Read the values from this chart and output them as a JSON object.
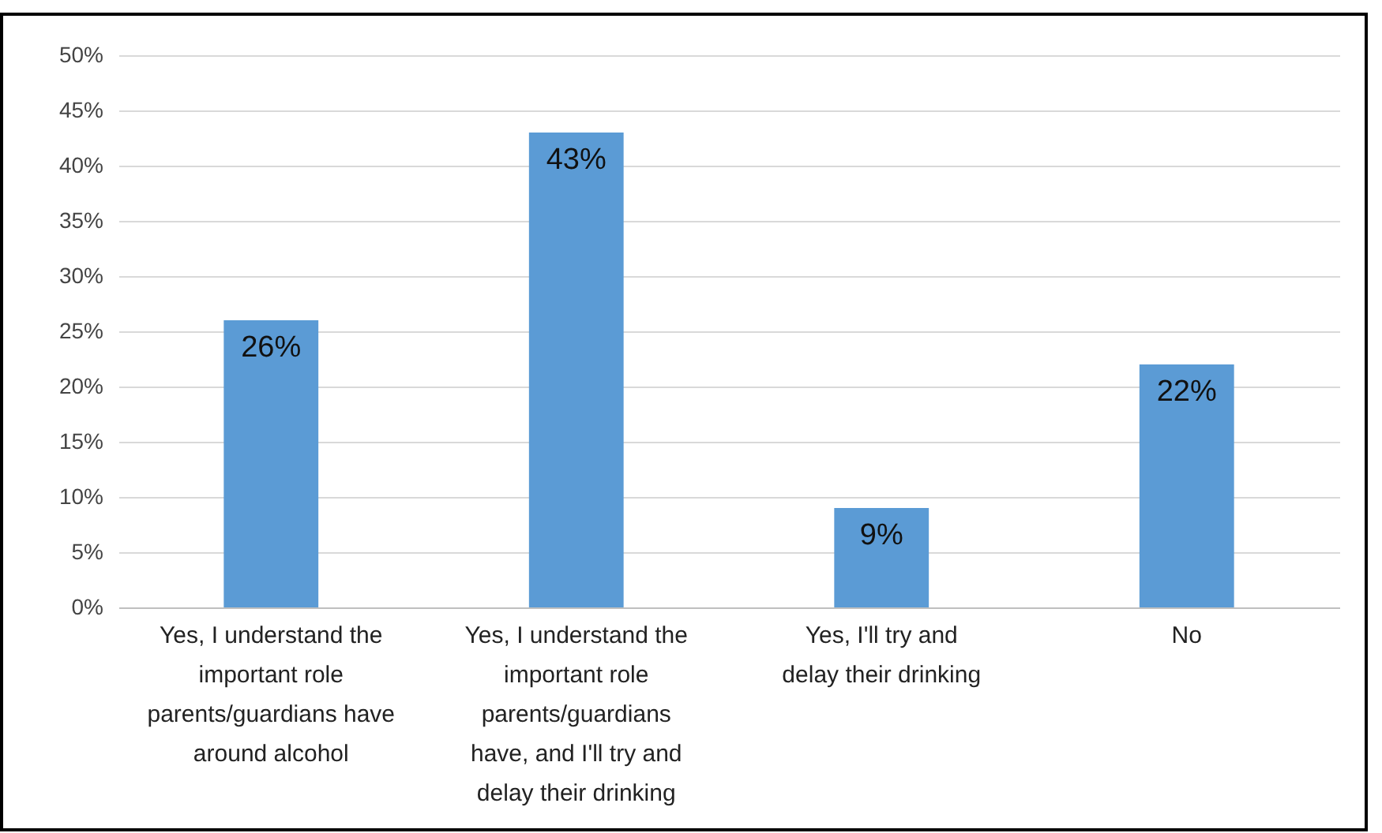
{
  "chart_data": {
    "type": "bar",
    "categories": [
      "Yes, I understand the important role parents/guardians have around alcohol",
      "Yes, I understand the important role parents/guardians have, and I'll try and delay their drinking",
      "Yes, I'll try and delay their drinking",
      "No"
    ],
    "values": [
      26,
      43,
      9,
      22
    ],
    "value_labels": [
      "26%",
      "43%",
      "9%",
      "22%"
    ],
    "color": "#5b9bd5",
    "ylim": [
      0,
      50
    ],
    "yticks": [
      {
        "value": 0,
        "label": "0%"
      },
      {
        "value": 5,
        "label": "5%"
      },
      {
        "value": 10,
        "label": "10%"
      },
      {
        "value": 15,
        "label": "15%"
      },
      {
        "value": 20,
        "label": "20%"
      },
      {
        "value": 25,
        "label": "25%"
      },
      {
        "value": 30,
        "label": "30%"
      },
      {
        "value": 35,
        "label": "35%"
      },
      {
        "value": 40,
        "label": "40%"
      },
      {
        "value": 45,
        "label": "45%"
      },
      {
        "value": 50,
        "label": "50%"
      }
    ],
    "grid": true
  }
}
